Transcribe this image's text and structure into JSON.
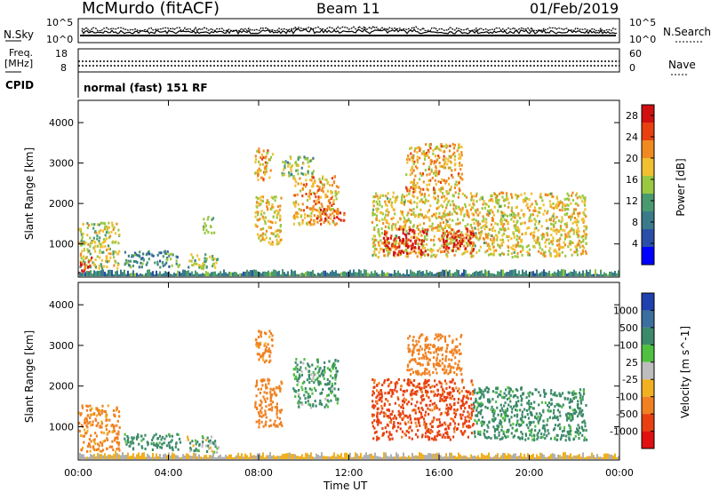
{
  "header": {
    "station": "McMurdo (fitACF)",
    "beam": "Beam 11",
    "date": "01/Feb/2019"
  },
  "noise_panel": {
    "left_label": "N.Sky",
    "right_label": "N.Search",
    "ticks_left": [
      "10^5",
      "10^0"
    ],
    "ticks_right": [
      "10^5",
      "10^0"
    ]
  },
  "freq_panel": {
    "left_label_1": "Freq.",
    "left_label_2": "[MHz]",
    "right_label": "Nave",
    "ticks_left": [
      "18",
      "8"
    ],
    "ticks_right": [
      "60",
      "0"
    ]
  },
  "cpid_panel": {
    "label": "CPID",
    "value": "normal (fast) 151 RF"
  },
  "colors": {
    "power_scale": [
      "#0000ff",
      "#2b4fa8",
      "#3a7a8a",
      "#4a9a70",
      "#9ac840",
      "#f0c030",
      "#f08a20",
      "#e84010",
      "#d01010"
    ],
    "velocity_scale": [
      "#2040b0",
      "#3a6fa0",
      "#3c8a6a",
      "#50c040",
      "#bdbdbd",
      "#f0b020",
      "#f08020",
      "#e84010",
      "#e01010"
    ],
    "ground_scatter": "#b0b0b0"
  },
  "chart_data": [
    {
      "type": "heatmap",
      "name": "power_panel",
      "ylabel": "Slant Range [km]",
      "x_ticks": [
        "00:00",
        "04:00",
        "08:00",
        "12:00",
        "16:00",
        "20:00",
        "00:00"
      ],
      "y_ticks": [
        "1000",
        "2000",
        "3000",
        "4000"
      ],
      "xlim": [
        0,
        24
      ],
      "ylim": [
        180,
        4550
      ],
      "colorbar": {
        "label": "Power [dB]",
        "ticks": [
          "4",
          "8",
          "12",
          "16",
          "20",
          "24",
          "28"
        ],
        "range": [
          0,
          30
        ]
      },
      "regions": [
        {
          "t0": 0.0,
          "t1": 1.8,
          "r0": 400,
          "r1": 1550,
          "value": 16
        },
        {
          "t0": 0.0,
          "t1": 0.6,
          "r0": 300,
          "r1": 700,
          "value": 26
        },
        {
          "t0": 2.0,
          "t1": 4.5,
          "r0": 450,
          "r1": 850,
          "value": 10
        },
        {
          "t0": 4.8,
          "t1": 6.2,
          "r0": 400,
          "r1": 800,
          "value": 14
        },
        {
          "t0": 5.5,
          "t1": 6.0,
          "r0": 1300,
          "r1": 1700,
          "value": 12
        },
        {
          "t0": 7.8,
          "t1": 9.0,
          "r0": 1000,
          "r1": 2200,
          "value": 18
        },
        {
          "t0": 7.8,
          "t1": 8.6,
          "r0": 2600,
          "r1": 3400,
          "value": 20
        },
        {
          "t0": 9.5,
          "t1": 11.5,
          "r0": 1500,
          "r1": 2700,
          "value": 20
        },
        {
          "t0": 10.5,
          "t1": 11.8,
          "r0": 1600,
          "r1": 1900,
          "value": 26
        },
        {
          "t0": 9.0,
          "t1": 10.5,
          "r0": 2700,
          "r1": 3200,
          "value": 14
        },
        {
          "t0": 13.0,
          "t1": 22.5,
          "r0": 700,
          "r1": 2300,
          "value": 18
        },
        {
          "t0": 13.5,
          "t1": 15.5,
          "r0": 750,
          "r1": 1400,
          "value": 28
        },
        {
          "t0": 16.0,
          "t1": 17.5,
          "r0": 800,
          "r1": 1400,
          "value": 26
        },
        {
          "t0": 14.5,
          "t1": 17.0,
          "r0": 2300,
          "r1": 3500,
          "value": 20
        }
      ],
      "ground_scatter": {
        "r0": 200,
        "r1": 350,
        "value": 10
      }
    },
    {
      "type": "heatmap",
      "name": "velocity_panel",
      "ylabel": "Slant Range [km]",
      "xlabel": "Time UT",
      "x_ticks": [
        "00:00",
        "04:00",
        "08:00",
        "12:00",
        "16:00",
        "20:00",
        "00:00"
      ],
      "y_ticks": [
        "1000",
        "2000",
        "3000",
        "4000"
      ],
      "xlim": [
        0,
        24
      ],
      "ylim": [
        180,
        4550
      ],
      "colorbar": {
        "label": "Velocity [m s^-1]",
        "ticks": [
          "1000",
          "500",
          "100",
          "25",
          "-25",
          "-100",
          "-500",
          "-1000"
        ]
      },
      "regions": [
        {
          "t0": 0.0,
          "t1": 1.8,
          "r0": 400,
          "r1": 1550,
          "value": -200
        },
        {
          "t0": 2.0,
          "t1": 4.5,
          "r0": 450,
          "r1": 850,
          "value": 200
        },
        {
          "t0": 4.8,
          "t1": 6.2,
          "r0": 400,
          "r1": 800,
          "value": 60
        },
        {
          "t0": 7.8,
          "t1": 9.0,
          "r0": 1000,
          "r1": 2200,
          "value": -300
        },
        {
          "t0": 7.8,
          "t1": 8.6,
          "r0": 2600,
          "r1": 3400,
          "value": -200
        },
        {
          "t0": 9.5,
          "t1": 11.5,
          "r0": 1500,
          "r1": 2700,
          "value": 150
        },
        {
          "t0": 13.0,
          "t1": 17.5,
          "r0": 700,
          "r1": 2200,
          "value": -600
        },
        {
          "t0": 14.5,
          "t1": 17.0,
          "r0": 2300,
          "r1": 3300,
          "value": -300
        },
        {
          "t0": 17.5,
          "t1": 22.5,
          "r0": 700,
          "r1": 2000,
          "value": 200
        }
      ],
      "ground_scatter": {
        "r0": 200,
        "r1": 350,
        "value": -50
      }
    }
  ]
}
